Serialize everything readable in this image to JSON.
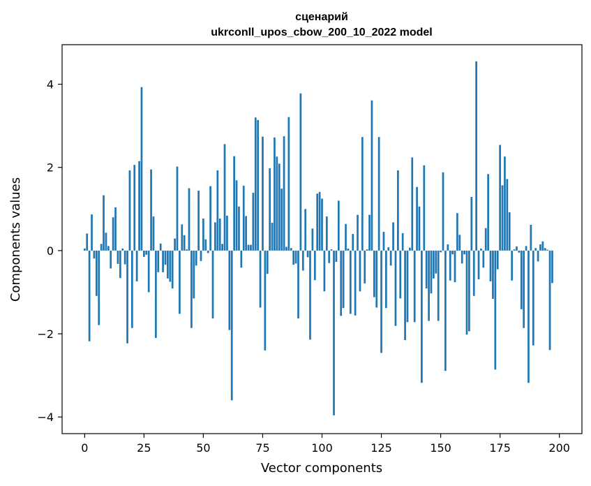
{
  "chart_data": {
    "type": "bar",
    "title_lines": [
      "сценарий",
      "ukrconll_upos_cbow_200_10_2022 model"
    ],
    "xlabel": "Vector components",
    "ylabel": "Components values",
    "xlim": [
      -9.5,
      209.5
    ],
    "ylim": [
      -4.4,
      4.95
    ],
    "xticks": [
      0,
      25,
      50,
      75,
      100,
      125,
      150,
      175,
      200
    ],
    "yticks": [
      -4,
      -2,
      0,
      2,
      4
    ],
    "grid": false,
    "bar_color": "#1f77b4",
    "x_start": 0,
    "values": [
      0.05,
      0.41,
      -2.18,
      0.87,
      -0.19,
      -1.09,
      -1.79,
      0.16,
      1.33,
      0.43,
      0.11,
      -0.43,
      0.8,
      1.04,
      -0.32,
      -0.66,
      0.05,
      -0.33,
      -2.23,
      1.93,
      -1.86,
      2.06,
      -0.74,
      2.15,
      3.93,
      -0.15,
      -0.1,
      -1.0,
      1.95,
      0.82,
      -2.1,
      -0.52,
      0.17,
      -0.52,
      -0.34,
      -0.67,
      -0.75,
      -0.91,
      0.29,
      2.02,
      -1.52,
      0.63,
      0.37,
      0.03,
      1.5,
      -1.86,
      -1.15,
      -0.36,
      1.44,
      -0.25,
      0.77,
      0.27,
      -0.06,
      1.55,
      -1.63,
      0.68,
      1.93,
      0.77,
      0.16,
      2.56,
      0.84,
      -1.91,
      -3.6,
      2.27,
      1.69,
      1.06,
      -0.41,
      1.56,
      0.83,
      0.14,
      0.14,
      1.39,
      3.2,
      3.14,
      -1.37,
      2.74,
      -2.4,
      -0.56,
      1.98,
      0.67,
      2.72,
      2.26,
      2.09,
      1.49,
      2.75,
      0.09,
      3.21,
      0.06,
      -0.34,
      -0.31,
      -1.63,
      3.78,
      -0.48,
      1.0,
      -0.16,
      -2.14,
      0.53,
      -0.71,
      1.37,
      1.41,
      1.25,
      -0.98,
      0.82,
      -0.3,
      0.03,
      -3.96,
      -0.27,
      1.2,
      -1.57,
      -1.38,
      0.64,
      0.05,
      -1.52,
      0.4,
      -1.56,
      0.86,
      -0.98,
      2.73,
      -0.79,
      0.03,
      0.86,
      3.61,
      -1.12,
      -1.37,
      2.73,
      -2.46,
      0.45,
      -1.38,
      0.08,
      -0.36,
      0.68,
      -1.81,
      1.93,
      -1.15,
      0.42,
      -2.15,
      -1.72,
      0.07,
      2.24,
      -1.72,
      1.53,
      1.06,
      -3.18,
      2.05,
      -0.91,
      -1.69,
      -1.03,
      -0.67,
      -0.55,
      -1.69,
      -0.04,
      1.88,
      -2.89,
      0.15,
      -0.72,
      -0.09,
      -0.76,
      0.9,
      0.38,
      -0.31,
      -0.09,
      -2.02,
      -1.94,
      1.29,
      -1.09,
      4.55,
      -0.69,
      0.05,
      -0.41,
      0.54,
      1.84,
      -0.74,
      -1.16,
      -2.86,
      -0.45,
      2.54,
      1.57,
      2.26,
      1.72,
      0.92,
      -0.72,
      0.03,
      0.1,
      -0.05,
      -1.41,
      -1.86,
      0.11,
      -3.18,
      0.62,
      -2.28,
      0.06,
      -0.26,
      0.15,
      0.22,
      0.06,
      0.02,
      -2.39,
      -0.78
    ]
  }
}
